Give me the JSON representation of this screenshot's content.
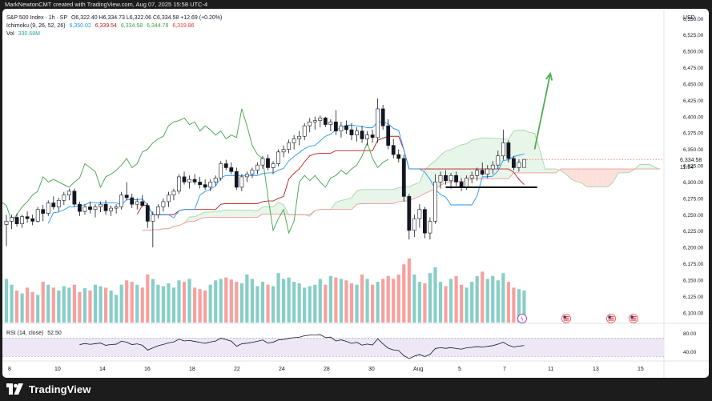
{
  "attribution": "MarkNewtonCMT created with TradingView.com, Aug 07, 2025 15:58 UTC-4",
  "legend": {
    "symbol": "S&P 500 Index · 1h · SP",
    "ohlc": "O6,322.40 H6,334.73 L6,322.06 C6,334.58 +12.69 (+0.20%)",
    "ichimoku_label": "Ichimoku (9, 26, 52, 26)",
    "ichimoku_values": [
      "6,350.02",
      "6,339.54",
      "6,334.58",
      "6,344.78",
      "6,319.86"
    ],
    "vol_label": "Vol",
    "vol_value": "330.68M",
    "rsi_label": "RSI (14, close)",
    "rsi_value": "52.50"
  },
  "price_axis": {
    "currency": "USD",
    "ticks": [
      "6,550.00",
      "6,525.00",
      "6,500.00",
      "6,475.00",
      "6,450.00",
      "6,425.00",
      "6,400.00",
      "6,375.00",
      "6,350.00",
      "6,325.00",
      "6,300.00",
      "6,275.00",
      "6,250.00",
      "6,225.00",
      "6,200.00",
      "6,175.00",
      "6,150.00",
      "6,125.00",
      "6,100.00"
    ],
    "last_price": "6,334.58",
    "countdown": "11:54"
  },
  "rsi_axis": {
    "ticks": [
      "80.00",
      "40.00"
    ]
  },
  "time_axis": {
    "ticks": [
      "8",
      "10",
      "14",
      "16",
      "18",
      "22",
      "24",
      "28",
      "30",
      "Aug",
      "5",
      "7",
      "11",
      "13",
      "15"
    ]
  },
  "footer": {
    "brand": "TradingView"
  },
  "colors": {
    "up": "#26a69a",
    "down": "#ef5350",
    "candle_up_body": "#ffffff",
    "candle_border": "#131722",
    "conversion": "#2196f3",
    "base": "#b71c1c",
    "lagging": "#43a047",
    "lead_a": "#a5d6a7",
    "lead_b": "#ef9a9a",
    "kumo_bull": "#e8f5e9",
    "kumo_bear": "#fde0dc",
    "rsi_line": "#131722",
    "rsi_band": "#ede7f6",
    "arrow": "#4caf50",
    "support_line": "#000000"
  },
  "chart_data": {
    "type": "candlestick",
    "title": "S&P 500 Index · 1h · SP",
    "ylim": [
      6085,
      6565
    ],
    "candles": [
      {
        "o": 6235,
        "h": 6250,
        "l": 6202,
        "c": 6240
      },
      {
        "o": 6240,
        "h": 6250,
        "l": 6228,
        "c": 6246
      },
      {
        "o": 6246,
        "h": 6252,
        "l": 6232,
        "c": 6236
      },
      {
        "o": 6236,
        "h": 6250,
        "l": 6230,
        "c": 6247
      },
      {
        "o": 6247,
        "h": 6255,
        "l": 6238,
        "c": 6244
      },
      {
        "o": 6244,
        "h": 6250,
        "l": 6234,
        "c": 6240
      },
      {
        "o": 6240,
        "h": 6262,
        "l": 6238,
        "c": 6258
      },
      {
        "o": 6258,
        "h": 6265,
        "l": 6240,
        "c": 6252
      },
      {
        "o": 6252,
        "h": 6272,
        "l": 6248,
        "c": 6268
      },
      {
        "o": 6268,
        "h": 6278,
        "l": 6258,
        "c": 6262
      },
      {
        "o": 6262,
        "h": 6276,
        "l": 6255,
        "c": 6272
      },
      {
        "o": 6272,
        "h": 6285,
        "l": 6265,
        "c": 6280
      },
      {
        "o": 6280,
        "h": 6290,
        "l": 6272,
        "c": 6286
      },
      {
        "o": 6286,
        "h": 6290,
        "l": 6262,
        "c": 6266
      },
      {
        "o": 6266,
        "h": 6270,
        "l": 6248,
        "c": 6255
      },
      {
        "o": 6255,
        "h": 6266,
        "l": 6250,
        "c": 6262
      },
      {
        "o": 6262,
        "h": 6270,
        "l": 6252,
        "c": 6258
      },
      {
        "o": 6258,
        "h": 6266,
        "l": 6246,
        "c": 6262
      },
      {
        "o": 6262,
        "h": 6270,
        "l": 6254,
        "c": 6266
      },
      {
        "o": 6266,
        "h": 6272,
        "l": 6250,
        "c": 6256
      },
      {
        "o": 6256,
        "h": 6264,
        "l": 6248,
        "c": 6260
      },
      {
        "o": 6260,
        "h": 6266,
        "l": 6252,
        "c": 6262
      },
      {
        "o": 6262,
        "h": 6285,
        "l": 6258,
        "c": 6280
      },
      {
        "o": 6280,
        "h": 6300,
        "l": 6272,
        "c": 6276
      },
      {
        "o": 6276,
        "h": 6282,
        "l": 6260,
        "c": 6266
      },
      {
        "o": 6266,
        "h": 6275,
        "l": 6258,
        "c": 6270
      },
      {
        "o": 6270,
        "h": 6280,
        "l": 6262,
        "c": 6264
      },
      {
        "o": 6264,
        "h": 6268,
        "l": 6230,
        "c": 6240
      },
      {
        "o": 6240,
        "h": 6255,
        "l": 6200,
        "c": 6250
      },
      {
        "o": 6250,
        "h": 6266,
        "l": 6244,
        "c": 6262
      },
      {
        "o": 6262,
        "h": 6275,
        "l": 6255,
        "c": 6270
      },
      {
        "o": 6270,
        "h": 6285,
        "l": 6262,
        "c": 6280
      },
      {
        "o": 6280,
        "h": 6290,
        "l": 6272,
        "c": 6286
      },
      {
        "o": 6286,
        "h": 6312,
        "l": 6282,
        "c": 6308
      },
      {
        "o": 6308,
        "h": 6316,
        "l": 6296,
        "c": 6300
      },
      {
        "o": 6300,
        "h": 6310,
        "l": 6290,
        "c": 6304
      },
      {
        "o": 6304,
        "h": 6312,
        "l": 6296,
        "c": 6300
      },
      {
        "o": 6300,
        "h": 6308,
        "l": 6290,
        "c": 6296
      },
      {
        "o": 6296,
        "h": 6304,
        "l": 6288,
        "c": 6292
      },
      {
        "o": 6292,
        "h": 6304,
        "l": 6286,
        "c": 6300
      },
      {
        "o": 6300,
        "h": 6310,
        "l": 6294,
        "c": 6306
      },
      {
        "o": 6306,
        "h": 6332,
        "l": 6302,
        "c": 6328
      },
      {
        "o": 6328,
        "h": 6334,
        "l": 6318,
        "c": 6322
      },
      {
        "o": 6322,
        "h": 6330,
        "l": 6312,
        "c": 6316
      },
      {
        "o": 6316,
        "h": 6322,
        "l": 6288,
        "c": 6292
      },
      {
        "o": 6292,
        "h": 6312,
        "l": 6286,
        "c": 6308
      },
      {
        "o": 6308,
        "h": 6316,
        "l": 6300,
        "c": 6312
      },
      {
        "o": 6312,
        "h": 6322,
        "l": 6306,
        "c": 6318
      },
      {
        "o": 6318,
        "h": 6330,
        "l": 6312,
        "c": 6326
      },
      {
        "o": 6326,
        "h": 6340,
        "l": 6320,
        "c": 6336
      },
      {
        "o": 6336,
        "h": 6342,
        "l": 6318,
        "c": 6322
      },
      {
        "o": 6322,
        "h": 6332,
        "l": 6312,
        "c": 6328
      },
      {
        "o": 6328,
        "h": 6350,
        "l": 6324,
        "c": 6346
      },
      {
        "o": 6346,
        "h": 6356,
        "l": 6338,
        "c": 6350
      },
      {
        "o": 6350,
        "h": 6365,
        "l": 6344,
        "c": 6360
      },
      {
        "o": 6360,
        "h": 6372,
        "l": 6350,
        "c": 6366
      },
      {
        "o": 6366,
        "h": 6378,
        "l": 6356,
        "c": 6370
      },
      {
        "o": 6370,
        "h": 6390,
        "l": 6364,
        "c": 6386
      },
      {
        "o": 6386,
        "h": 6398,
        "l": 6376,
        "c": 6392
      },
      {
        "o": 6392,
        "h": 6400,
        "l": 6380,
        "c": 6394
      },
      {
        "o": 6394,
        "h": 6402,
        "l": 6384,
        "c": 6398
      },
      {
        "o": 6398,
        "h": 6400,
        "l": 6384,
        "c": 6388
      },
      {
        "o": 6388,
        "h": 6396,
        "l": 6378,
        "c": 6392
      },
      {
        "o": 6392,
        "h": 6410,
        "l": 6372,
        "c": 6378
      },
      {
        "o": 6378,
        "h": 6392,
        "l": 6368,
        "c": 6386
      },
      {
        "o": 6386,
        "h": 6394,
        "l": 6374,
        "c": 6380
      },
      {
        "o": 6380,
        "h": 6390,
        "l": 6364,
        "c": 6372
      },
      {
        "o": 6372,
        "h": 6384,
        "l": 6362,
        "c": 6378
      },
      {
        "o": 6378,
        "h": 6386,
        "l": 6360,
        "c": 6366
      },
      {
        "o": 6366,
        "h": 6378,
        "l": 6356,
        "c": 6372
      },
      {
        "o": 6372,
        "h": 6380,
        "l": 6360,
        "c": 6368
      },
      {
        "o": 6368,
        "h": 6428,
        "l": 6360,
        "c": 6412
      },
      {
        "o": 6412,
        "h": 6418,
        "l": 6380,
        "c": 6386
      },
      {
        "o": 6386,
        "h": 6396,
        "l": 6350,
        "c": 6356
      },
      {
        "o": 6356,
        "h": 6366,
        "l": 6336,
        "c": 6342
      },
      {
        "o": 6342,
        "h": 6350,
        "l": 6330,
        "c": 6336
      },
      {
        "o": 6336,
        "h": 6342,
        "l": 6270,
        "c": 6278
      },
      {
        "o": 6278,
        "h": 6282,
        "l": 6212,
        "c": 6226
      },
      {
        "o": 6226,
        "h": 6250,
        "l": 6216,
        "c": 6244
      },
      {
        "o": 6244,
        "h": 6266,
        "l": 6230,
        "c": 6258
      },
      {
        "o": 6258,
        "h": 6262,
        "l": 6214,
        "c": 6222
      },
      {
        "o": 6222,
        "h": 6246,
        "l": 6212,
        "c": 6240
      },
      {
        "o": 6240,
        "h": 6312,
        "l": 6236,
        "c": 6300
      },
      {
        "o": 6300,
        "h": 6316,
        "l": 6290,
        "c": 6310
      },
      {
        "o": 6310,
        "h": 6318,
        "l": 6296,
        "c": 6302
      },
      {
        "o": 6302,
        "h": 6314,
        "l": 6290,
        "c": 6310
      },
      {
        "o": 6310,
        "h": 6316,
        "l": 6294,
        "c": 6300
      },
      {
        "o": 6300,
        "h": 6306,
        "l": 6286,
        "c": 6292
      },
      {
        "o": 6292,
        "h": 6310,
        "l": 6288,
        "c": 6306
      },
      {
        "o": 6306,
        "h": 6316,
        "l": 6298,
        "c": 6310
      },
      {
        "o": 6310,
        "h": 6322,
        "l": 6302,
        "c": 6318
      },
      {
        "o": 6318,
        "h": 6330,
        "l": 6310,
        "c": 6312
      },
      {
        "o": 6312,
        "h": 6326,
        "l": 6306,
        "c": 6320
      },
      {
        "o": 6320,
        "h": 6332,
        "l": 6312,
        "c": 6326
      },
      {
        "o": 6326,
        "h": 6348,
        "l": 6320,
        "c": 6340
      },
      {
        "o": 6340,
        "h": 6380,
        "l": 6334,
        "c": 6360
      },
      {
        "o": 6360,
        "h": 6364,
        "l": 6330,
        "c": 6336
      },
      {
        "o": 6336,
        "h": 6340,
        "l": 6318,
        "c": 6322
      },
      {
        "o": 6322,
        "h": 6335,
        "l": 6316,
        "c": 6330
      },
      {
        "o": 6322.4,
        "h": 6334.73,
        "l": 6322.06,
        "c": 6334.58
      }
    ],
    "volume": [
      150,
      130,
      110,
      100,
      120,
      105,
      95,
      140,
      130,
      120,
      110,
      125,
      120,
      130,
      105,
      118,
      110,
      130,
      125,
      120,
      110,
      95,
      130,
      145,
      140,
      130,
      120,
      165,
      150,
      130,
      125,
      135,
      120,
      145,
      140,
      150,
      120,
      115,
      110,
      130,
      145,
      150,
      155,
      148,
      140,
      135,
      165,
      150,
      125,
      140,
      130,
      125,
      170,
      150,
      155,
      140,
      135,
      120,
      125,
      130,
      150,
      130,
      160,
      155,
      150,
      145,
      135,
      130,
      165,
      150,
      130,
      140,
      150,
      160,
      150,
      165,
      200,
      220,
      165,
      140,
      135,
      170,
      190,
      140,
      125,
      150,
      160,
      130,
      120,
      140,
      160,
      175,
      150,
      160,
      145,
      170,
      140,
      120,
      115,
      110
    ]
  }
}
